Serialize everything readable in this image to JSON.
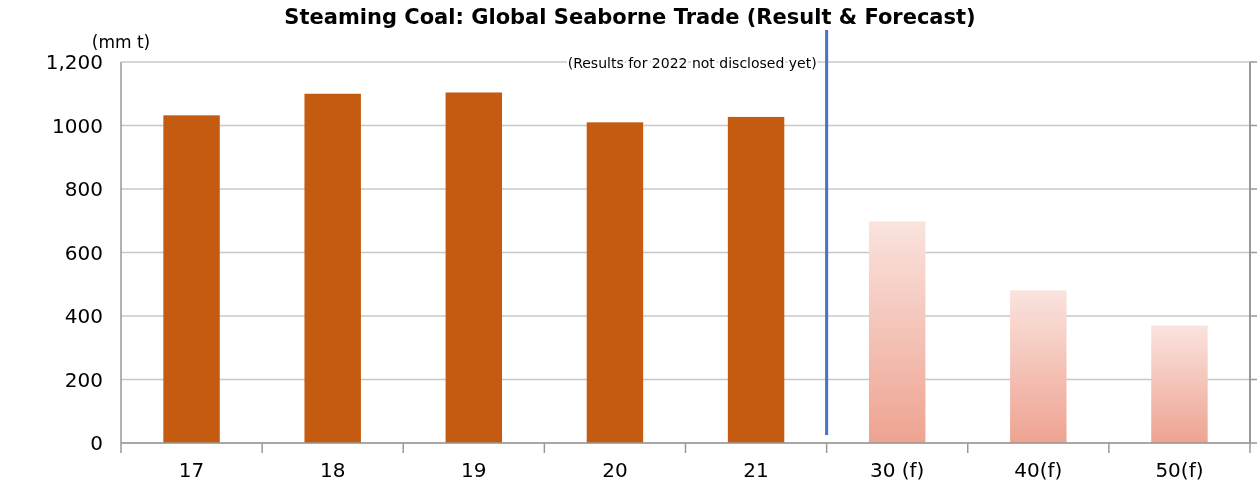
{
  "chart_data": {
    "type": "bar",
    "title": "Steaming Coal: Global Seaborne Trade (Result & Forecast)",
    "ylabel": "(mm t)",
    "categories": [
      "17",
      "18",
      "19",
      "20",
      "21",
      "30 (f)",
      "40(f)",
      "50(f)"
    ],
    "values": [
      1032,
      1100,
      1104,
      1010,
      1027,
      698,
      481,
      370
    ],
    "colors": [
      "#c55a11",
      "#c55a11",
      "#c55a11",
      "#c55a11",
      "#c55a11",
      "#eea391",
      "#eea391",
      "#eea391"
    ],
    "ylim": [
      0,
      1200
    ],
    "yticks": [
      0,
      200,
      400,
      600,
      800,
      1000,
      {
        "value": 1200,
        "label": "1,200"
      }
    ],
    "grid": "y",
    "annotations": [
      "(Results for 2022 not disclosed yet)"
    ]
  }
}
